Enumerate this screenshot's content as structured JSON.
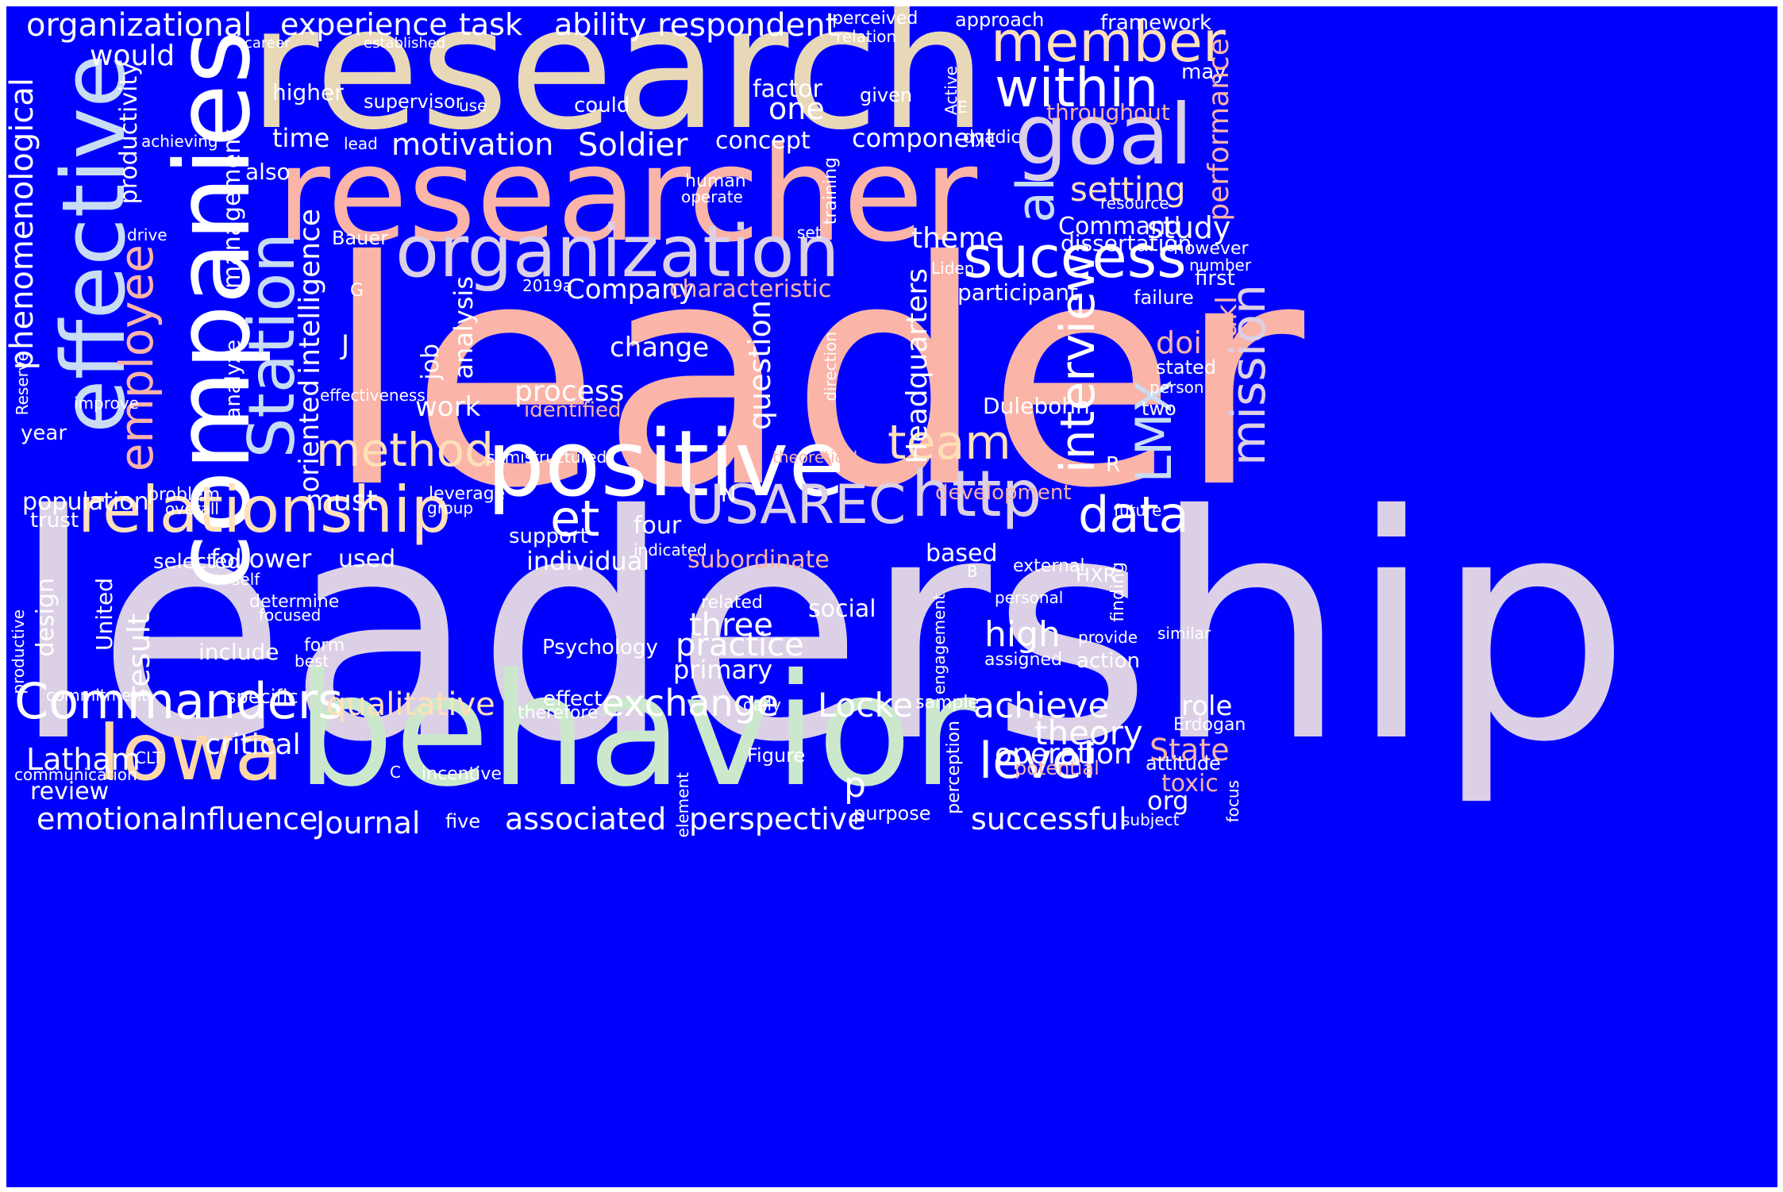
{
  "cloud": {
    "background": "#0000ff",
    "words": [
      {
        "text": "leader",
        "color": "#fab4a8"
      },
      {
        "text": "leadership",
        "color": "#dcd0e6"
      },
      {
        "text": "research",
        "color": "#e8d8b8"
      },
      {
        "text": "researcher",
        "color": "#fab4a8"
      },
      {
        "text": "behavior",
        "color": "#cce8cc"
      },
      {
        "text": "companies",
        "color": "#ffffff"
      },
      {
        "text": "effective",
        "color": "#c8dcf4"
      },
      {
        "text": "positive",
        "color": "#ffffff"
      },
      {
        "text": "organization",
        "color": "#dcd0e6"
      },
      {
        "text": "goal",
        "color": "#dcd0e6"
      },
      {
        "text": "Iowa",
        "color": "#ffd8a8"
      },
      {
        "text": "relationship",
        "color": "#ffe0b8"
      },
      {
        "text": "Station",
        "color": "#c8dcf4"
      },
      {
        "text": "member",
        "color": "#ffe0b8"
      },
      {
        "text": "within",
        "color": "#ffffff"
      },
      {
        "text": "success",
        "color": "#ffffff"
      },
      {
        "text": "Commanders",
        "color": "#ffffff"
      },
      {
        "text": "USAREC",
        "color": "#dcd0e6"
      },
      {
        "text": "http",
        "color": "#dcd0e6"
      },
      {
        "text": "et",
        "color": "#ffffff"
      },
      {
        "text": "al",
        "color": "#c8dcf4"
      },
      {
        "text": "employee",
        "color": "#fab4a8"
      },
      {
        "text": "method",
        "color": "#ffe0b8"
      },
      {
        "text": "team",
        "color": "#ffe0b8"
      },
      {
        "text": "data",
        "color": "#ffffff"
      },
      {
        "text": "LMX",
        "color": "#c8dcf4"
      },
      {
        "text": "interview",
        "color": "#ffffff"
      },
      {
        "text": "mission",
        "color": "#dcd0e6"
      },
      {
        "text": "level",
        "color": "#ffffff"
      },
      {
        "text": "organizational",
        "color": "#ffffff"
      },
      {
        "text": "experience",
        "color": "#ffffff"
      },
      {
        "text": "task",
        "color": "#ffffff"
      },
      {
        "text": "ability",
        "color": "#ffffff"
      },
      {
        "text": "respondent",
        "color": "#ffffff"
      },
      {
        "text": "would",
        "color": "#ffffff"
      },
      {
        "text": "perceived",
        "color": "#ffffff"
      },
      {
        "text": "relation",
        "color": "#ffffff"
      },
      {
        "text": "approach",
        "color": "#ffffff"
      },
      {
        "text": "framework",
        "color": "#ffffff"
      },
      {
        "text": "may",
        "color": "#ffffff"
      },
      {
        "text": "career",
        "color": "#ffffff"
      },
      {
        "text": "established",
        "color": "#ffffff"
      },
      {
        "text": "productivity",
        "color": "#ffffff"
      },
      {
        "text": "higher",
        "color": "#ffffff"
      },
      {
        "text": "supervisor",
        "color": "#ffffff"
      },
      {
        "text": "use",
        "color": "#ffffff"
      },
      {
        "text": "could",
        "color": "#ffffff"
      },
      {
        "text": "factor",
        "color": "#ffffff"
      },
      {
        "text": "one",
        "color": "#ffffff"
      },
      {
        "text": "given",
        "color": "#ffffff"
      },
      {
        "text": "Active",
        "color": "#ffffff"
      },
      {
        "text": "E",
        "color": "#ffffff"
      },
      {
        "text": "throughout",
        "color": "#fab4a8"
      },
      {
        "text": "performance",
        "color": "#fab4a8"
      },
      {
        "text": "phenomenological",
        "color": "#ffffff"
      },
      {
        "text": "achieving",
        "color": "#ffffff"
      },
      {
        "text": "time",
        "color": "#ffffff"
      },
      {
        "text": "lead",
        "color": "#ffffff"
      },
      {
        "text": "motivation",
        "color": "#ffffff"
      },
      {
        "text": "Soldier",
        "color": "#ffffff"
      },
      {
        "text": "concept",
        "color": "#ffffff"
      },
      {
        "text": "component",
        "color": "#ffffff"
      },
      {
        "text": "dyadic",
        "color": "#ffffff"
      },
      {
        "text": "management",
        "color": "#ffffff"
      },
      {
        "text": "also",
        "color": "#ffffff"
      },
      {
        "text": "human",
        "color": "#ffffff"
      },
      {
        "text": "operate",
        "color": "#ffffff"
      },
      {
        "text": "training",
        "color": "#ffffff"
      },
      {
        "text": "setting",
        "color": "#ffe0b8"
      },
      {
        "text": "resource",
        "color": "#ffffff"
      },
      {
        "text": "drive",
        "color": "#ffffff"
      },
      {
        "text": "Bauer",
        "color": "#ffffff"
      },
      {
        "text": "set",
        "color": "#ffffff"
      },
      {
        "text": "theme",
        "color": "#ffffff"
      },
      {
        "text": "Command",
        "color": "#ffffff"
      },
      {
        "text": "study",
        "color": "#ffffff"
      },
      {
        "text": "dissertation",
        "color": "#ffffff"
      },
      {
        "text": "however",
        "color": "#ffffff"
      },
      {
        "text": "number",
        "color": "#ffffff"
      },
      {
        "text": "first",
        "color": "#ffffff"
      },
      {
        "text": "Liden",
        "color": "#ffffff"
      },
      {
        "text": "G",
        "color": "#ffffff"
      },
      {
        "text": "2019a",
        "color": "#ffffff"
      },
      {
        "text": "Company",
        "color": "#ffffff"
      },
      {
        "text": "characteristic",
        "color": "#fab4a8"
      },
      {
        "text": "participant",
        "color": "#ffffff"
      },
      {
        "text": "failure",
        "color": "#ffffff"
      },
      {
        "text": "intelligence",
        "color": "#ffffff"
      },
      {
        "text": "oriented",
        "color": "#ffffff"
      },
      {
        "text": "analysis",
        "color": "#ffffff"
      },
      {
        "text": "J",
        "color": "#ffffff"
      },
      {
        "text": "change",
        "color": "#ffffff"
      },
      {
        "text": "question",
        "color": "#ffffff"
      },
      {
        "text": "Headquarters",
        "color": "#ffffff"
      },
      {
        "text": "doi",
        "color": "#fab4a8"
      },
      {
        "text": "Yukl",
        "color": "#fab4a8"
      },
      {
        "text": "direction",
        "color": "#ffffff"
      },
      {
        "text": "stated",
        "color": "#ffffff"
      },
      {
        "text": "person",
        "color": "#ffffff"
      },
      {
        "text": "Reserve",
        "color": "#ffffff"
      },
      {
        "text": "improve",
        "color": "#ffffff"
      },
      {
        "text": "effectiveness",
        "color": "#ffffff"
      },
      {
        "text": "analyze",
        "color": "#ffffff"
      },
      {
        "text": "job",
        "color": "#ffffff"
      },
      {
        "text": "process",
        "color": "#ffffff"
      },
      {
        "text": "identified",
        "color": "#fab4a8"
      },
      {
        "text": "work",
        "color": "#ffffff"
      },
      {
        "text": "Dulebohn",
        "color": "#ffffff"
      },
      {
        "text": "two",
        "color": "#ffffff"
      },
      {
        "text": "year",
        "color": "#ffffff"
      },
      {
        "text": "semistructured",
        "color": "#ffffff"
      },
      {
        "text": "theoretical",
        "color": "#fab4a8"
      },
      {
        "text": "R",
        "color": "#ffffff"
      },
      {
        "text": "population",
        "color": "#ffffff"
      },
      {
        "text": "problem",
        "color": "#ffffff"
      },
      {
        "text": "overall",
        "color": "#ffffff"
      },
      {
        "text": "must",
        "color": "#ffffff"
      },
      {
        "text": "leverage",
        "color": "#ffffff"
      },
      {
        "text": "group",
        "color": "#ffffff"
      },
      {
        "text": "N",
        "color": "#ffffff"
      },
      {
        "text": "development",
        "color": "#fab4a8"
      },
      {
        "text": "future",
        "color": "#ffffff"
      },
      {
        "text": "trust",
        "color": "#ffffff"
      },
      {
        "text": "support",
        "color": "#ffffff"
      },
      {
        "text": "four",
        "color": "#ffffff"
      },
      {
        "text": "indicated",
        "color": "#ffffff"
      },
      {
        "text": "selected",
        "color": "#ffffff"
      },
      {
        "text": "follower",
        "color": "#ffffff"
      },
      {
        "text": "used",
        "color": "#ffffff"
      },
      {
        "text": "individual",
        "color": "#ffffff"
      },
      {
        "text": "subordinate",
        "color": "#fab4a8"
      },
      {
        "text": "based",
        "color": "#ffffff"
      },
      {
        "text": "external",
        "color": "#ffffff"
      },
      {
        "text": "B",
        "color": "#ffffff"
      },
      {
        "text": "HXR",
        "color": "#ffffff"
      },
      {
        "text": "self",
        "color": "#ffffff"
      },
      {
        "text": "design",
        "color": "#ffffff"
      },
      {
        "text": "United",
        "color": "#ffffff"
      },
      {
        "text": "determine",
        "color": "#ffffff"
      },
      {
        "text": "focused",
        "color": "#ffffff"
      },
      {
        "text": "related",
        "color": "#ffffff"
      },
      {
        "text": "social",
        "color": "#ffffff"
      },
      {
        "text": "personal",
        "color": "#ffffff"
      },
      {
        "text": "finding",
        "color": "#ffffff"
      },
      {
        "text": "three",
        "color": "#ffffff"
      },
      {
        "text": "high",
        "color": "#ffffff"
      },
      {
        "text": "engagement",
        "color": "#ffffff"
      },
      {
        "text": "similar",
        "color": "#ffffff"
      },
      {
        "text": "productive",
        "color": "#ffffff"
      },
      {
        "text": "result",
        "color": "#ffffff"
      },
      {
        "text": "form",
        "color": "#ffffff"
      },
      {
        "text": "best",
        "color": "#ffffff"
      },
      {
        "text": "include",
        "color": "#ffffff"
      },
      {
        "text": "Psychology",
        "color": "#ffffff"
      },
      {
        "text": "practice",
        "color": "#ffffff"
      },
      {
        "text": "primary",
        "color": "#ffffff"
      },
      {
        "text": "provide",
        "color": "#ffffff"
      },
      {
        "text": "assigned",
        "color": "#ffffff"
      },
      {
        "text": "action",
        "color": "#ffffff"
      },
      {
        "text": "commitment",
        "color": "#ffffff"
      },
      {
        "text": "specific",
        "color": "#ffffff"
      },
      {
        "text": "effect",
        "color": "#ffffff"
      },
      {
        "text": "exchange",
        "color": "#ffffff"
      },
      {
        "text": "therefore",
        "color": "#ffffff"
      },
      {
        "text": "daily",
        "color": "#ffffff"
      },
      {
        "text": "qualitative",
        "color": "#ffe0b8"
      },
      {
        "text": "Locke",
        "color": "#ffffff"
      },
      {
        "text": "sample",
        "color": "#ffffff"
      },
      {
        "text": "achieve",
        "color": "#ffffff"
      },
      {
        "text": "role",
        "color": "#ffffff"
      },
      {
        "text": "Erdogan",
        "color": "#ffffff"
      },
      {
        "text": "theory",
        "color": "#ffffff"
      },
      {
        "text": "critical",
        "color": "#ffffff"
      },
      {
        "text": "Latham",
        "color": "#ffffff"
      },
      {
        "text": "CLT",
        "color": "#ffffff"
      },
      {
        "text": "Figure",
        "color": "#ffffff"
      },
      {
        "text": "operation",
        "color": "#ffffff"
      },
      {
        "text": "State",
        "color": "#fab4a8"
      },
      {
        "text": "attitude",
        "color": "#ffffff"
      },
      {
        "text": "potential",
        "color": "#fab4a8"
      },
      {
        "text": "communication",
        "color": "#ffffff"
      },
      {
        "text": "C",
        "color": "#ffffff"
      },
      {
        "text": "incentive",
        "color": "#ffffff"
      },
      {
        "text": "p",
        "color": "#ffffff"
      },
      {
        "text": "perception",
        "color": "#ffffff"
      },
      {
        "text": "toxic",
        "color": "#fab4a8"
      },
      {
        "text": "review",
        "color": "#ffffff"
      },
      {
        "text": "element",
        "color": "#ffffff"
      },
      {
        "text": "org",
        "color": "#ffffff"
      },
      {
        "text": "focus",
        "color": "#ffffff"
      },
      {
        "text": "emotional",
        "color": "#ffffff"
      },
      {
        "text": "influence",
        "color": "#ffffff"
      },
      {
        "text": "Journal",
        "color": "#ffffff"
      },
      {
        "text": "five",
        "color": "#ffffff"
      },
      {
        "text": "associated",
        "color": "#ffffff"
      },
      {
        "text": "perspective",
        "color": "#ffffff"
      },
      {
        "text": "purpose",
        "color": "#ffffff"
      },
      {
        "text": "successful",
        "color": "#ffffff"
      },
      {
        "text": "subject",
        "color": "#ffffff"
      }
    ]
  }
}
